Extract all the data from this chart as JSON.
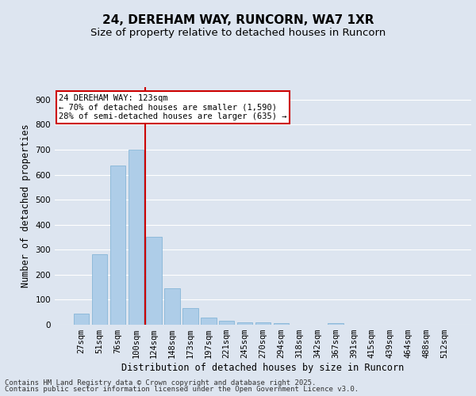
{
  "title1": "24, DEREHAM WAY, RUNCORN, WA7 1XR",
  "title2": "Size of property relative to detached houses in Runcorn",
  "xlabel": "Distribution of detached houses by size in Runcorn",
  "ylabel": "Number of detached properties",
  "categories": [
    "27sqm",
    "51sqm",
    "76sqm",
    "100sqm",
    "124sqm",
    "148sqm",
    "173sqm",
    "197sqm",
    "221sqm",
    "245sqm",
    "270sqm",
    "294sqm",
    "318sqm",
    "342sqm",
    "367sqm",
    "391sqm",
    "415sqm",
    "439sqm",
    "464sqm",
    "488sqm",
    "512sqm"
  ],
  "values": [
    43,
    283,
    635,
    700,
    350,
    145,
    68,
    28,
    16,
    11,
    10,
    7,
    0,
    0,
    5,
    0,
    0,
    0,
    0,
    0,
    0
  ],
  "bar_color": "#aecde8",
  "bar_edge_color": "#7aafd4",
  "vline_color": "#cc0000",
  "annotation_text": "24 DEREHAM WAY: 123sqm\n← 70% of detached houses are smaller (1,590)\n28% of semi-detached houses are larger (635) →",
  "annotation_box_color": "#ffffff",
  "annotation_box_edge": "#cc0000",
  "ylim": [
    0,
    950
  ],
  "yticks": [
    0,
    100,
    200,
    300,
    400,
    500,
    600,
    700,
    800,
    900
  ],
  "background_color": "#dde5f0",
  "plot_background": "#dde5f0",
  "grid_color": "#ffffff",
  "footer1": "Contains HM Land Registry data © Crown copyright and database right 2025.",
  "footer2": "Contains public sector information licensed under the Open Government Licence v3.0.",
  "title1_fontsize": 11,
  "title2_fontsize": 9.5,
  "xlabel_fontsize": 8.5,
  "ylabel_fontsize": 8.5,
  "tick_fontsize": 7.5,
  "footer_fontsize": 6.5,
  "annotation_fontsize": 7.5
}
